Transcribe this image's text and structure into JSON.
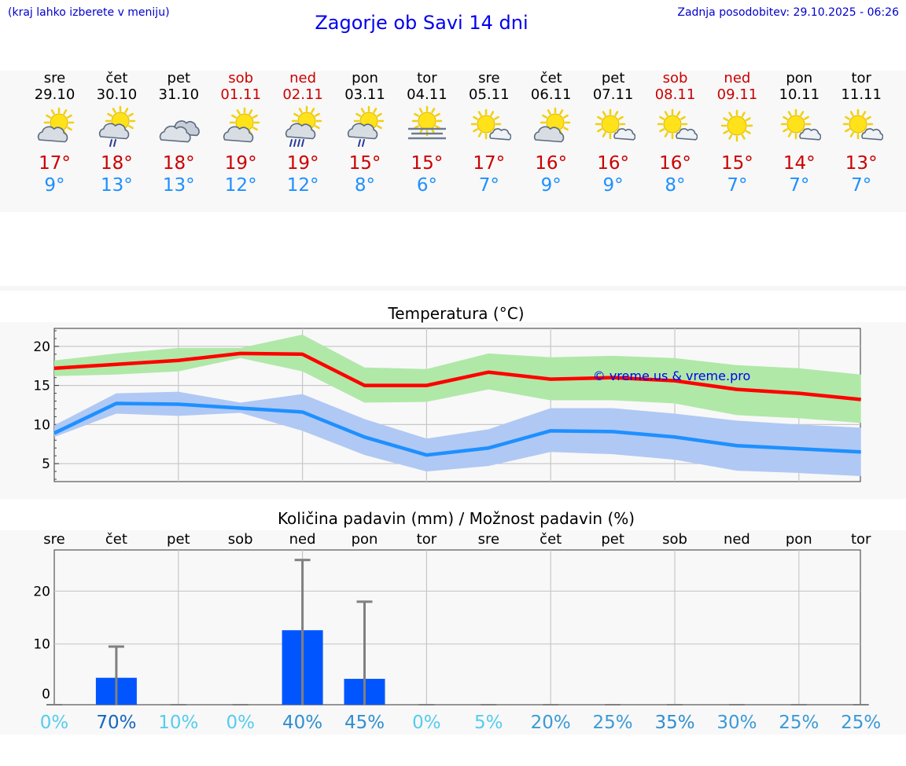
{
  "header": {
    "note_left": "(kraj lahko izberete v meniju)",
    "title": "Zagorje ob Savi 14 dni",
    "note_right": "Zadnja posodobitev: 29.10.2025 - 06:26"
  },
  "days": [
    {
      "name": "sre",
      "date": "29.10",
      "weekend": false,
      "icon": "sun-cloud-icon",
      "max": "17°",
      "min": "9°"
    },
    {
      "name": "čet",
      "date": "30.10",
      "weekend": false,
      "icon": "sun-cloud-drizzle-icon",
      "max": "18°",
      "min": "13°"
    },
    {
      "name": "pet",
      "date": "31.10",
      "weekend": false,
      "icon": "overcast-icon",
      "max": "18°",
      "min": "13°"
    },
    {
      "name": "sob",
      "date": "01.11",
      "weekend": true,
      "icon": "sun-cloud-icon",
      "max": "19°",
      "min": "12°"
    },
    {
      "name": "ned",
      "date": "02.11",
      "weekend": true,
      "icon": "sun-cloud-rain-icon",
      "max": "19°",
      "min": "12°"
    },
    {
      "name": "pon",
      "date": "03.11",
      "weekend": false,
      "icon": "sun-cloud-drizzle-icon",
      "max": "15°",
      "min": "8°"
    },
    {
      "name": "tor",
      "date": "04.11",
      "weekend": false,
      "icon": "sun-fog-icon",
      "max": "15°",
      "min": "6°"
    },
    {
      "name": "sre",
      "date": "05.11",
      "weekend": false,
      "icon": "sun-small-cloud-icon",
      "max": "17°",
      "min": "7°"
    },
    {
      "name": "čet",
      "date": "06.11",
      "weekend": false,
      "icon": "sun-cloud-icon",
      "max": "16°",
      "min": "9°"
    },
    {
      "name": "pet",
      "date": "07.11",
      "weekend": false,
      "icon": "sun-small-cloud-icon",
      "max": "16°",
      "min": "9°"
    },
    {
      "name": "sob",
      "date": "08.11",
      "weekend": true,
      "icon": "sun-small-cloud-icon",
      "max": "16°",
      "min": "8°"
    },
    {
      "name": "ned",
      "date": "09.11",
      "weekend": true,
      "icon": "sun-icon",
      "max": "15°",
      "min": "7°"
    },
    {
      "name": "pon",
      "date": "10.11",
      "weekend": false,
      "icon": "sun-small-cloud-icon",
      "max": "14°",
      "min": "7°"
    },
    {
      "name": "tor",
      "date": "11.11",
      "weekend": false,
      "icon": "sun-small-cloud-icon",
      "max": "13°",
      "min": "7°"
    }
  ],
  "colors": {
    "max_line": "#ff0000",
    "max_band": "#b0e8a8",
    "min_line": "#1e90ff",
    "min_band": "#b0c8f4",
    "bar": "#0055ff",
    "errbar": "#808080",
    "weekend_text": "#cc0000",
    "min_text": "#1e90ff"
  },
  "chart_data": [
    {
      "type": "line",
      "title": "Temperatura (°C)",
      "xlabel": "",
      "ylabel": "",
      "ylim": [
        2.7,
        22.3
      ],
      "yticks": [
        5,
        10,
        15,
        20
      ],
      "grid": true,
      "watermark": "© vreme.us & vreme.pro",
      "series": [
        {
          "name": "max",
          "values": [
            17.2,
            17.7,
            18.2,
            19.1,
            19.0,
            15.0,
            15.0,
            16.7,
            15.8,
            16.0,
            15.6,
            14.5,
            14.0,
            13.2
          ],
          "band_low": [
            16.2,
            16.4,
            16.8,
            18.5,
            16.8,
            12.8,
            12.9,
            14.5,
            13.1,
            13.1,
            12.7,
            11.2,
            10.8,
            10.2
          ],
          "band_high": [
            18.2,
            19.1,
            19.8,
            19.8,
            21.5,
            17.3,
            17.1,
            19.1,
            18.6,
            18.8,
            18.5,
            17.6,
            17.2,
            16.4
          ]
        },
        {
          "name": "min",
          "values": [
            8.9,
            12.7,
            12.6,
            12.1,
            11.6,
            8.4,
            6.1,
            7.0,
            9.2,
            9.1,
            8.4,
            7.3,
            6.9,
            6.5
          ],
          "band_low": [
            8.4,
            11.4,
            11.1,
            11.5,
            9.2,
            6.1,
            4.0,
            4.7,
            6.5,
            6.2,
            5.5,
            4.1,
            3.8,
            3.4
          ],
          "band_high": [
            9.9,
            14.0,
            14.2,
            12.8,
            13.9,
            10.7,
            8.2,
            9.4,
            12.1,
            12.1,
            11.4,
            10.5,
            10.0,
            9.6
          ]
        }
      ]
    },
    {
      "type": "bar",
      "title": "Količina padavin (mm) / Možnost padavin (%)",
      "categories": [
        "sre",
        "čet",
        "pet",
        "sob",
        "ned",
        "pon",
        "tor",
        "sre",
        "čet",
        "pet",
        "sob",
        "ned",
        "pon",
        "tor"
      ],
      "values": [
        0,
        3.6,
        0,
        0,
        12.6,
        3.4,
        0,
        0,
        0,
        0,
        0,
        0,
        0,
        0
      ],
      "error_high": [
        0,
        9.5,
        0,
        0,
        25.9,
        18.0,
        0,
        0,
        0,
        0,
        0,
        0,
        0,
        0
      ],
      "probability": [
        "0%",
        "70%",
        "10%",
        "0%",
        "40%",
        "45%",
        "0%",
        "5%",
        "20%",
        "25%",
        "35%",
        "30%",
        "25%",
        "25%"
      ],
      "probability_colors": [
        "#55ccee",
        "#1565c0",
        "#55ccee",
        "#55ccee",
        "#2f8fd0",
        "#2f8fd0",
        "#55ccee",
        "#55ccee",
        "#3a9ad6",
        "#3a9ad6",
        "#2f8fd0",
        "#3a9ad6",
        "#3a9ad6",
        "#3a9ad6"
      ],
      "ylim": [
        -1.5,
        27.8
      ],
      "yticks": [
        0,
        10,
        20
      ],
      "grid": true
    }
  ]
}
